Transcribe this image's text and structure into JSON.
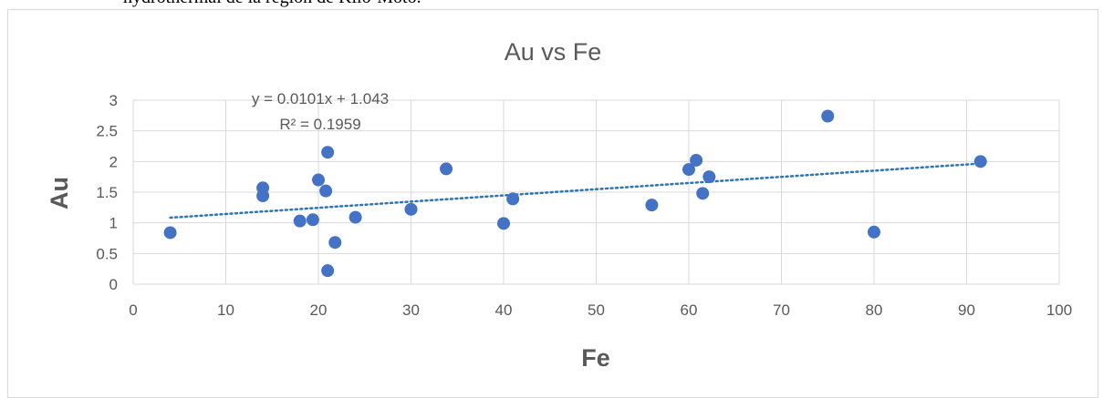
{
  "page": {
    "header_text": "hydrothermal de la région de Kilo-Moto."
  },
  "chart_data": {
    "type": "scatter",
    "title": "Au vs Fe",
    "xlabel": "Fe",
    "ylabel": "Au",
    "xlim": [
      0,
      100
    ],
    "ylim": [
      0,
      3
    ],
    "x_ticks": [
      "0",
      "10",
      "20",
      "30",
      "40",
      "50",
      "60",
      "70",
      "80",
      "90",
      "100"
    ],
    "y_ticks": [
      "0",
      "0.5",
      "1",
      "1.5",
      "2",
      "2.5",
      "3"
    ],
    "grid": true,
    "series": [
      {
        "color": "#4472c4",
        "points": [
          {
            "x": 4,
            "y": 0.84
          },
          {
            "x": 14,
            "y": 1.57
          },
          {
            "x": 14,
            "y": 1.44
          },
          {
            "x": 18,
            "y": 1.03
          },
          {
            "x": 19.4,
            "y": 1.05
          },
          {
            "x": 20,
            "y": 1.7
          },
          {
            "x": 20.8,
            "y": 1.52
          },
          {
            "x": 21,
            "y": 2.15
          },
          {
            "x": 21,
            "y": 0.22
          },
          {
            "x": 21.8,
            "y": 0.68
          },
          {
            "x": 24,
            "y": 1.09
          },
          {
            "x": 30,
            "y": 1.22
          },
          {
            "x": 33.8,
            "y": 1.88
          },
          {
            "x": 40,
            "y": 0.99
          },
          {
            "x": 41,
            "y": 1.39
          },
          {
            "x": 56,
            "y": 1.29
          },
          {
            "x": 60,
            "y": 1.87
          },
          {
            "x": 60.8,
            "y": 2.02
          },
          {
            "x": 61.5,
            "y": 1.48
          },
          {
            "x": 62.2,
            "y": 1.75
          },
          {
            "x": 75,
            "y": 2.74
          },
          {
            "x": 80,
            "y": 0.85
          },
          {
            "x": 91.5,
            "y": 2.0
          }
        ]
      }
    ],
    "trendline": {
      "type": "linear",
      "slope": 0.0101,
      "intercept": 1.043,
      "x_range": [
        4,
        91.5
      ],
      "color": "#2e75b6",
      "equation_label": "y = 0.0101x + 1.043",
      "r2_label": "R² = 0.1959"
    }
  }
}
